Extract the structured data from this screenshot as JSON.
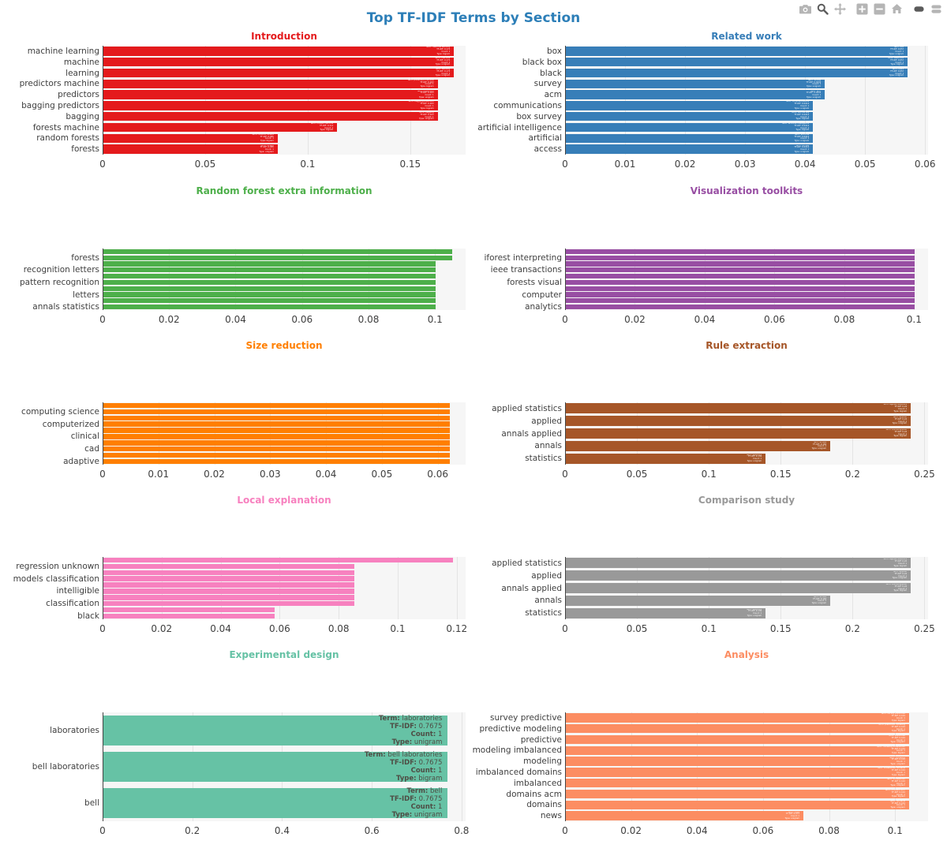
{
  "title": "Top TF-IDF Terms by Section",
  "title_color": "#2d7fb8",
  "modebar": {
    "inactive_color": "#b5b5b5",
    "active_color": "#5b5b5b",
    "groups": [
      [
        {
          "name": "camera",
          "active": false
        },
        {
          "name": "zoom",
          "active": true
        },
        {
          "name": "pan",
          "active": false
        }
      ],
      [
        {
          "name": "zoom-in",
          "active": false
        },
        {
          "name": "zoom-out",
          "active": false
        },
        {
          "name": "autoscale",
          "active": false
        }
      ],
      [
        {
          "name": "hover-closest",
          "active": true
        },
        {
          "name": "hover-compare",
          "active": false
        }
      ]
    ]
  },
  "chart_data": [
    {
      "type": "bar",
      "orientation": "h",
      "title": "Introduction",
      "color": "#e41a1c",
      "annotated": true,
      "bars": [
        [
          "machine learning",
          0.171
        ],
        [
          "machine",
          0.171
        ],
        [
          "learning",
          0.171
        ],
        [
          "predictors machine",
          0.163
        ],
        [
          "predictors",
          0.163
        ],
        [
          "bagging predictors",
          0.163
        ],
        [
          "bagging",
          0.163
        ],
        [
          "forests machine",
          0.114
        ],
        [
          "random forests",
          0.085
        ],
        [
          "forests",
          0.085
        ]
      ],
      "xticks": [
        {
          "v": 0,
          "label": "0"
        },
        {
          "v": 0.05,
          "label": "0.05"
        },
        {
          "v": 0.1,
          "label": "0.1"
        },
        {
          "v": 0.15,
          "label": "0.15"
        }
      ],
      "xmax": 0.177
    },
    {
      "type": "bar",
      "orientation": "h",
      "title": "Related work",
      "color": "#377eb8",
      "annotated": true,
      "bars": [
        [
          "box",
          0.057
        ],
        [
          "black box",
          0.057
        ],
        [
          "black",
          0.057
        ],
        [
          "survey",
          0.0432
        ],
        [
          "acm",
          0.0432
        ],
        [
          "communications",
          0.0412
        ],
        [
          "box survey",
          0.0412
        ],
        [
          "artificial intelligence",
          0.0412
        ],
        [
          "artificial",
          0.0412
        ],
        [
          "access",
          0.0412
        ]
      ],
      "xticks": [
        {
          "v": 0,
          "label": "0"
        },
        {
          "v": 0.01,
          "label": "0.01"
        },
        {
          "v": 0.02,
          "label": "0.02"
        },
        {
          "v": 0.03,
          "label": "0.03"
        },
        {
          "v": 0.04,
          "label": "0.04"
        },
        {
          "v": 0.05,
          "label": "0.05"
        },
        {
          "v": 0.06,
          "label": "0.06"
        }
      ],
      "xmax": 0.0605
    },
    {
      "type": "bar",
      "orientation": "h",
      "title": "Random forest extra information",
      "color": "#4daf4a",
      "annotated": false,
      "bars": [
        [
          "",
          0.105
        ],
        [
          "forests",
          0.105
        ],
        [
          "",
          0.1
        ],
        [
          "recognition letters",
          0.1
        ],
        [
          "",
          0.1
        ],
        [
          "pattern recognition",
          0.1
        ],
        [
          "",
          0.1
        ],
        [
          "letters",
          0.1
        ],
        [
          "",
          0.1
        ],
        [
          "annals statistics",
          0.1
        ]
      ],
      "xticks": [
        {
          "v": 0,
          "label": "0"
        },
        {
          "v": 0.02,
          "label": "0.02"
        },
        {
          "v": 0.04,
          "label": "0.04"
        },
        {
          "v": 0.06,
          "label": "0.06"
        },
        {
          "v": 0.08,
          "label": "0.08"
        },
        {
          "v": 0.1,
          "label": "0.1"
        }
      ],
      "xmax": 0.1092
    },
    {
      "type": "bar",
      "orientation": "h",
      "title": "Visualization toolkits",
      "color": "#984ea3",
      "annotated": false,
      "bars": [
        [
          "",
          0.1
        ],
        [
          "iforest interpreting",
          0.1
        ],
        [
          "",
          0.1
        ],
        [
          "ieee transactions",
          0.1
        ],
        [
          "",
          0.1
        ],
        [
          "forests visual",
          0.1
        ],
        [
          "",
          0.1
        ],
        [
          "computer",
          0.1
        ],
        [
          "",
          0.1
        ],
        [
          "analytics",
          0.1
        ]
      ],
      "xticks": [
        {
          "v": 0,
          "label": "0"
        },
        {
          "v": 0.02,
          "label": "0.02"
        },
        {
          "v": 0.04,
          "label": "0.04"
        },
        {
          "v": 0.06,
          "label": "0.06"
        },
        {
          "v": 0.08,
          "label": "0.08"
        },
        {
          "v": 0.1,
          "label": "0.1"
        }
      ],
      "xmax": 0.104
    },
    {
      "type": "bar",
      "orientation": "h",
      "title": "Size reduction",
      "color": "#ff7f00",
      "annotated": false,
      "bars": [
        [
          "",
          0.062
        ],
        [
          "computing science",
          0.062
        ],
        [
          "",
          0.062
        ],
        [
          "computerized",
          0.062
        ],
        [
          "",
          0.062
        ],
        [
          "clinical",
          0.062
        ],
        [
          "",
          0.062
        ],
        [
          "cad",
          0.062
        ],
        [
          "",
          0.062
        ],
        [
          "adaptive",
          0.062
        ]
      ],
      "xticks": [
        {
          "v": 0,
          "label": "0"
        },
        {
          "v": 0.01,
          "label": "0.01"
        },
        {
          "v": 0.02,
          "label": "0.02"
        },
        {
          "v": 0.03,
          "label": "0.03"
        },
        {
          "v": 0.04,
          "label": "0.04"
        },
        {
          "v": 0.05,
          "label": "0.05"
        },
        {
          "v": 0.06,
          "label": "0.06"
        }
      ],
      "xmax": 0.065
    },
    {
      "type": "bar",
      "orientation": "h",
      "title": "Rule extraction",
      "color": "#a65628",
      "annotated": true,
      "bars": [
        [
          "applied statistics",
          0.24
        ],
        [
          "applied",
          0.24
        ],
        [
          "annals applied",
          0.24
        ],
        [
          "annals",
          0.184
        ],
        [
          "statistics",
          0.139
        ]
      ],
      "xticks": [
        {
          "v": 0,
          "label": "0"
        },
        {
          "v": 0.05,
          "label": "0.05"
        },
        {
          "v": 0.1,
          "label": "0.1"
        },
        {
          "v": 0.15,
          "label": "0.15"
        },
        {
          "v": 0.2,
          "label": "0.2"
        },
        {
          "v": 0.25,
          "label": "0.25"
        }
      ],
      "xmax": 0.2525
    },
    {
      "type": "bar",
      "orientation": "h",
      "title": "Local explanation",
      "color": "#f781bf",
      "annotated": false,
      "bars": [
        [
          "",
          0.1185
        ],
        [
          "regression unknown",
          0.085
        ],
        [
          "",
          0.085
        ],
        [
          "models classification",
          0.085
        ],
        [
          "",
          0.085
        ],
        [
          "intelligible",
          0.085
        ],
        [
          "",
          0.085
        ],
        [
          "classification",
          0.085
        ],
        [
          "",
          0.058
        ],
        [
          "black",
          0.058
        ]
      ],
      "xticks": [
        {
          "v": 0,
          "label": "0"
        },
        {
          "v": 0.02,
          "label": "0.02"
        },
        {
          "v": 0.04,
          "label": "0.04"
        },
        {
          "v": 0.06,
          "label": "0.06"
        },
        {
          "v": 0.08,
          "label": "0.08"
        },
        {
          "v": 0.1,
          "label": "0.1"
        },
        {
          "v": 0.12,
          "label": "0.12"
        }
      ],
      "xmax": 0.123
    },
    {
      "type": "bar",
      "orientation": "h",
      "title": "Comparison study",
      "color": "#999999",
      "annotated": true,
      "bars": [
        [
          "applied statistics",
          0.24
        ],
        [
          "applied",
          0.24
        ],
        [
          "annals applied",
          0.24
        ],
        [
          "annals",
          0.184
        ],
        [
          "statistics",
          0.139
        ]
      ],
      "xticks": [
        {
          "v": 0,
          "label": "0"
        },
        {
          "v": 0.05,
          "label": "0.05"
        },
        {
          "v": 0.1,
          "label": "0.1"
        },
        {
          "v": 0.15,
          "label": "0.15"
        },
        {
          "v": 0.2,
          "label": "0.2"
        },
        {
          "v": 0.25,
          "label": "0.25"
        }
      ],
      "xmax": 0.2525
    },
    {
      "type": "bar",
      "orientation": "h",
      "title": "Experimental design",
      "color": "#66c2a5",
      "annotated": true,
      "big_annotations": true,
      "bars": [
        [
          "laboratories",
          0.7675
        ],
        [
          "bell laboratories",
          0.7675
        ],
        [
          "bell",
          0.7675
        ]
      ],
      "annotations": [
        [
          [
            "Term:",
            "laboratories"
          ],
          [
            "TF-IDF:",
            "0.7675"
          ],
          [
            "Count:",
            "1"
          ],
          [
            "Type:",
            "unigram"
          ]
        ],
        [
          [
            "Term:",
            "bell laboratories"
          ],
          [
            "TF-IDF:",
            "0.7675"
          ],
          [
            "Count:",
            "1"
          ],
          [
            "Type:",
            "bigram"
          ]
        ],
        [
          [
            "Term:",
            "bell"
          ],
          [
            "TF-IDF:",
            "0.7675"
          ],
          [
            "Count:",
            "1"
          ],
          [
            "Type:",
            "unigram"
          ]
        ]
      ],
      "xticks": [
        {
          "v": 0,
          "label": "0"
        },
        {
          "v": 0.2,
          "label": "0.2"
        },
        {
          "v": 0.4,
          "label": "0.4"
        },
        {
          "v": 0.6,
          "label": "0.6"
        },
        {
          "v": 0.8,
          "label": "0.8"
        }
      ],
      "xmax": 0.809
    },
    {
      "type": "bar",
      "orientation": "h",
      "title": "Analysis",
      "color": "#fc8d62",
      "annotated": true,
      "bars": [
        [
          "survey predictive",
          0.104
        ],
        [
          "predictive modeling",
          0.104
        ],
        [
          "predictive",
          0.104
        ],
        [
          "modeling imbalanced",
          0.104
        ],
        [
          "modeling",
          0.104
        ],
        [
          "imbalanced domains",
          0.104
        ],
        [
          "imbalanced",
          0.104
        ],
        [
          "domains acm",
          0.104
        ],
        [
          "domains",
          0.104
        ],
        [
          "news",
          0.072
        ]
      ],
      "xticks": [
        {
          "v": 0,
          "label": "0"
        },
        {
          "v": 0.02,
          "label": "0.02"
        },
        {
          "v": 0.04,
          "label": "0.04"
        },
        {
          "v": 0.06,
          "label": "0.06"
        },
        {
          "v": 0.08,
          "label": "0.08"
        },
        {
          "v": 0.1,
          "label": "0.1"
        }
      ],
      "xmax": 0.11
    }
  ]
}
